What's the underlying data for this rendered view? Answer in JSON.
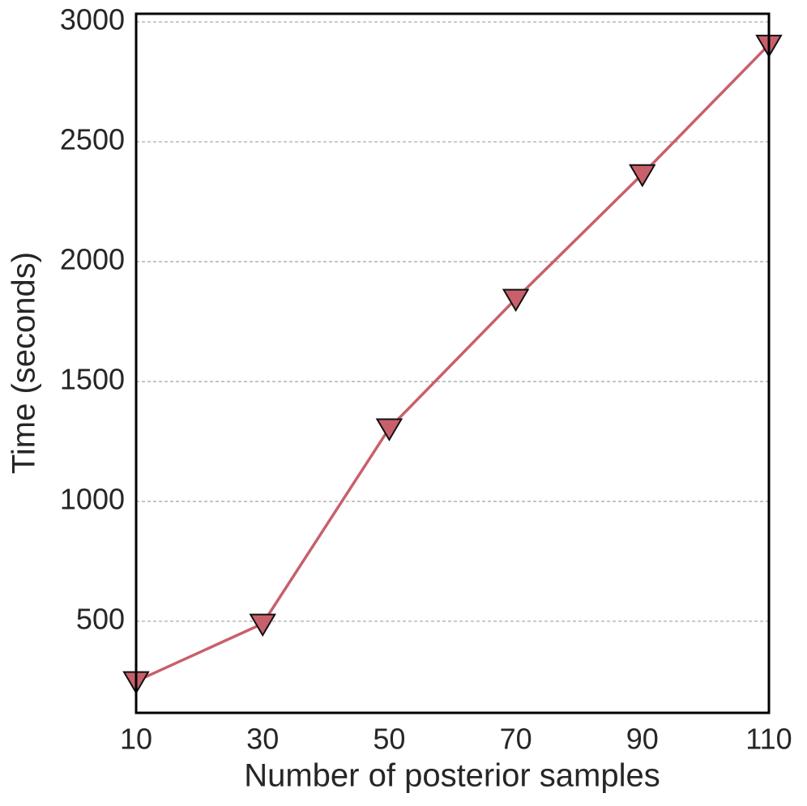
{
  "chart_data": {
    "type": "line",
    "xlabel": "Number of posterior samples",
    "ylabel": "Time (seconds)",
    "x": [
      10,
      30,
      50,
      70,
      90,
      110
    ],
    "series": [
      {
        "color": "#c8606b",
        "marker": "triangle-down",
        "values": [
          250,
          490,
          1305,
          1845,
          2365,
          2905
        ]
      }
    ],
    "xlim": [
      10,
      110
    ],
    "xticks": [
      10,
      30,
      50,
      70,
      90,
      110
    ],
    "ylim": [
      118,
      3034
    ],
    "yticks": [
      500,
      1000,
      1500,
      2000,
      2500,
      3000
    ],
    "grid": true
  }
}
